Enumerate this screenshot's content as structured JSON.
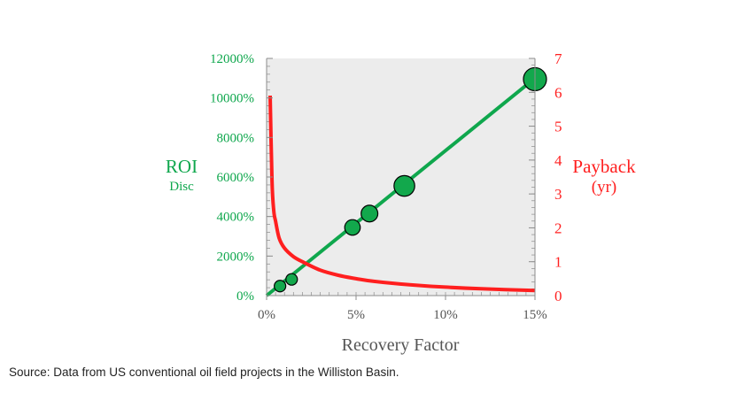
{
  "source_note": "Source: Data from US conventional oil field projects in the Williston Basin.",
  "colors": {
    "roi": "#0fa74d",
    "payback": "#ff1f1f",
    "plot_background": "#ececec",
    "bubble_fill": "#12a84c",
    "axis": "#8c8c8c",
    "text": "#555555"
  },
  "chart_data": {
    "type": "line",
    "xlabel": "Recovery Factor",
    "ylabel_left": "ROI",
    "ylabel_left_sub": "Disc",
    "ylabel_right": "Payback",
    "ylabel_right_sub": "(yr)",
    "xlim": [
      0,
      15
    ],
    "ylim_left": [
      0,
      12000
    ],
    "ylim_right": [
      0,
      7
    ],
    "x_ticks": [
      0,
      5,
      10,
      15
    ],
    "x_tick_labels": [
      "0%",
      "5%",
      "10%",
      "15%"
    ],
    "y_left_ticks": [
      0,
      2000,
      4000,
      6000,
      8000,
      10000,
      12000
    ],
    "y_left_tick_labels": [
      "0%",
      "2000%",
      "4000%",
      "6000%",
      "8000%",
      "10000%",
      "12000%"
    ],
    "y_right_ticks": [
      0,
      1,
      2,
      3,
      4,
      5,
      6,
      7
    ],
    "y_right_tick_labels": [
      "0",
      "1",
      "2",
      "3",
      "4",
      "5",
      "6",
      "7"
    ],
    "series": [
      {
        "axis": "left",
        "style": "line",
        "x": [
          0,
          15
        ],
        "y": [
          0,
          11000
        ]
      },
      {
        "axis": "right",
        "style": "line",
        "x": [
          0.2,
          0.3,
          0.4,
          0.5,
          0.7,
          1.0,
          1.5,
          2.0,
          3.0,
          4.0,
          5.0,
          6.0,
          8.0,
          10.0,
          12.0,
          15.0
        ],
        "y": [
          5.9,
          3.4,
          2.5,
          2.2,
          1.7,
          1.4,
          1.15,
          1.0,
          0.75,
          0.6,
          0.5,
          0.42,
          0.32,
          0.25,
          0.2,
          0.15
        ]
      },
      {
        "axis": "left",
        "style": "bubble",
        "points": [
          {
            "x": 0.75,
            "y": 480,
            "size": 1.0
          },
          {
            "x": 1.4,
            "y": 820,
            "size": 1.0
          },
          {
            "x": 4.8,
            "y": 3450,
            "size": 1.35
          },
          {
            "x": 5.75,
            "y": 4150,
            "size": 1.45
          },
          {
            "x": 7.7,
            "y": 5550,
            "size": 1.8
          },
          {
            "x": 15.0,
            "y": 10950,
            "size": 2.0
          }
        ]
      }
    ]
  }
}
